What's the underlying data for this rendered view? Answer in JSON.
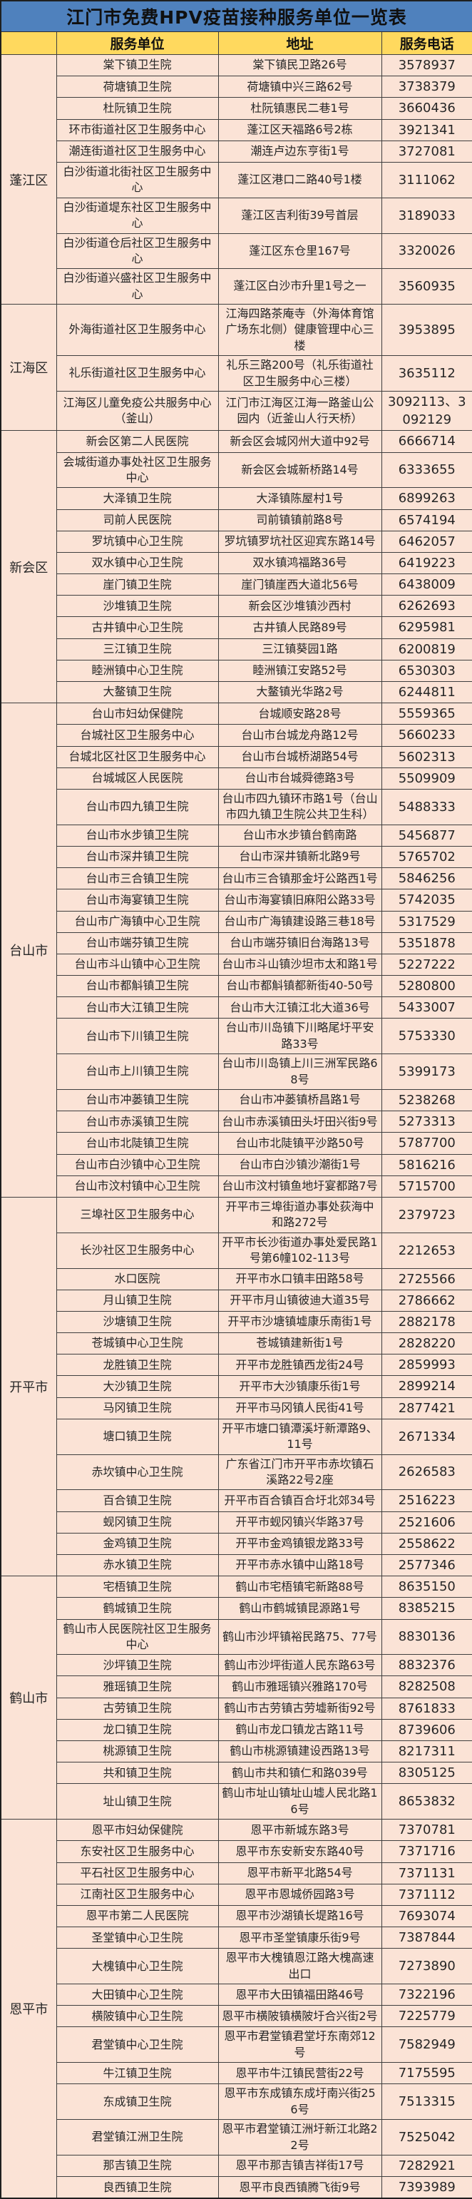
{
  "title": "江门市免费HPV疫苗接种服务单位一览表",
  "table": {
    "columns": [
      "服务单位",
      "地址",
      "服务电话"
    ],
    "sections": [
      {
        "district": "蓬江区",
        "rows": [
          {
            "unit": "棠下镇卫生院",
            "address": "棠下镇民卫路26号",
            "phone": "3578937"
          },
          {
            "unit": "荷塘镇卫生院",
            "address": "荷塘镇中兴三路62号",
            "phone": "3738379"
          },
          {
            "unit": "杜阮镇卫生院",
            "address": "杜阮镇惠民二巷1号",
            "phone": "3660436"
          },
          {
            "unit": "环市街道社区卫生服务中心",
            "address": "蓬江区天福路6号2栋",
            "phone": "3921341"
          },
          {
            "unit": "潮连街道社区卫生服务中心",
            "address": "潮连卢边东亨街1号",
            "phone": "3727081"
          },
          {
            "unit": "白沙街道北街社区卫生服务中心",
            "address": "蓬江区港口二路40号1楼",
            "phone": "3111062"
          },
          {
            "unit": "白沙街道堤东社区卫生服务中心",
            "address": "蓬江区吉利街39号首层",
            "phone": "3189033"
          },
          {
            "unit": "白沙街道仓后社区卫生服务中心",
            "address": "蓬江区东仓里167号",
            "phone": "3320026"
          },
          {
            "unit": "白沙街道兴盛社区卫生服务中心",
            "address": "蓬江区白沙市升里1号之一",
            "phone": "3560935"
          }
        ]
      },
      {
        "district": "江海区",
        "rows": [
          {
            "unit": "外海街道社区卫生服务中心",
            "address": "江海四路茶庵寺（外海体育馆广场东北侧）健康管理中心三楼",
            "phone": "3953895"
          },
          {
            "unit": "礼乐街道社区卫生服务中心",
            "address": "礼乐三路200号（礼乐街道社区卫生服务中心三楼）",
            "phone": "3635112"
          },
          {
            "unit": "江海区儿童免疫公共服务中心（釜山）",
            "address": "江门市江海区江海一路釜山公园内（近釜山人行天桥）",
            "phone": "3092113、3092129"
          }
        ]
      },
      {
        "district": "新会区",
        "rows": [
          {
            "unit": "新会区第二人民医院",
            "address": "新会区会城冈州大道中92号",
            "phone": "6666714"
          },
          {
            "unit": "会城街道办事处社区卫生服务中心",
            "address": "新会区会城新桥路14号",
            "phone": "6333655"
          },
          {
            "unit": "大泽镇卫生院",
            "address": "大泽镇陈屋村1号",
            "phone": "6899263"
          },
          {
            "unit": "司前人民医院",
            "address": "司前镇镇前路8号",
            "phone": "6574194"
          },
          {
            "unit": "罗坑镇中心卫生院",
            "address": "罗坑镇罗坑社区迎宾东路14号",
            "phone": "6462057"
          },
          {
            "unit": "双水镇中心卫生院",
            "address": "双水镇鸿福路36号",
            "phone": "6419223"
          },
          {
            "unit": "崖门镇卫生院",
            "address": "崖门镇崖西大道北56号",
            "phone": "6438009"
          },
          {
            "unit": "沙堆镇卫生院",
            "address": "新会区沙堆镇沙西村",
            "phone": "6262693"
          },
          {
            "unit": "古井镇中心卫生院",
            "address": "古井镇人民路89号",
            "phone": "6295981"
          },
          {
            "unit": "三江镇卫生院",
            "address": "三江镇葵园1路",
            "phone": "6200819"
          },
          {
            "unit": "睦洲镇中心卫生院",
            "address": "睦洲镇江安路52号",
            "phone": "6530303"
          },
          {
            "unit": "大鳌镇卫生院",
            "address": "大鳌镇光华路2号",
            "phone": "6244811"
          }
        ]
      },
      {
        "district": "台山市",
        "rows": [
          {
            "unit": "台山市妇幼保健院",
            "address": "台城顺安路28号",
            "phone": "5559365"
          },
          {
            "unit": "台城社区卫生服务中心",
            "address": "台山市台城龙舟路12号",
            "phone": "5660233"
          },
          {
            "unit": "台城北区社区卫生服务中心",
            "address": "台山市台城桥湖路54号",
            "phone": "5602313"
          },
          {
            "unit": "台城城区人民医院",
            "address": "台山市台城舜德路3号",
            "phone": "5509909"
          },
          {
            "unit": "台山市四九镇卫生院",
            "address": "台山市四九镇环市路1号（台山市四九镇卫生院公共卫生科）",
            "phone": "5488333"
          },
          {
            "unit": "台山市水步镇卫生院",
            "address": "台山市水步镇台鹤南路",
            "phone": "5456877"
          },
          {
            "unit": "台山市深井镇卫生院",
            "address": "台山市深井镇新北路9号",
            "phone": "5765702"
          },
          {
            "unit": "台山市三合镇卫生院",
            "address": "台山市三合镇那金圩公路西1号",
            "phone": "5846256"
          },
          {
            "unit": "台山市海宴镇卫生院",
            "address": "台山市海宴镇旧麻阳公路33号",
            "phone": "5742035"
          },
          {
            "unit": "台山市广海镇中心卫生院",
            "address": "台山市广海镇建设路三巷18号",
            "phone": "5317529"
          },
          {
            "unit": "台山市端芬镇卫生院",
            "address": "台山市端芬镇旧台海路13号",
            "phone": "5351878"
          },
          {
            "unit": "台山市斗山镇中心卫生院",
            "address": "台山市斗山镇沙坦市太和路1号",
            "phone": "5227222"
          },
          {
            "unit": "台山市都斛镇卫生院",
            "address": "台山市都斛镇都新街40-50号",
            "phone": "5280800"
          },
          {
            "unit": "台山市大江镇卫生院",
            "address": "台山市大江镇江北大道36号",
            "phone": "5433007"
          },
          {
            "unit": "台山市下川镇卫生院",
            "address": "台山市川岛镇下川略尾圩平安路33号",
            "phone": "5753330"
          },
          {
            "unit": "台山市上川镇卫生院",
            "address": "台山市川岛镇上川三洲军民路68号",
            "phone": "5399173"
          },
          {
            "unit": "台山市冲蒌镇卫生院",
            "address": "台山市冲蒌镇桥昌路1号",
            "phone": "5238268"
          },
          {
            "unit": "台山市赤溪镇卫生院",
            "address": "台山市赤溪镇田头圩田兴街9号",
            "phone": "5273313"
          },
          {
            "unit": "台山市北陡镇卫生院",
            "address": "台山市北陡镇平沙路50号",
            "phone": "5787700"
          },
          {
            "unit": "台山市白沙镇中心卫生院",
            "address": "台山市白沙镇沙潮街1号",
            "phone": "5816216"
          },
          {
            "unit": "台山市汶村镇中心卫生院",
            "address": "台山市汶村镇鱼地圩宴都路7号",
            "phone": "5715700"
          }
        ]
      },
      {
        "district": "开平市",
        "rows": [
          {
            "unit": "三埠社区卫生服务中心",
            "address": "开平市三埠街道办事处荻海中和路272号",
            "phone": "2379723"
          },
          {
            "unit": "长沙社区卫生服务中心",
            "address": "开平市长沙街道办事处爱民路1号第6幢102-113号",
            "phone": "2212653"
          },
          {
            "unit": "水口医院",
            "address": "开平市水口镇丰田路58号",
            "phone": "2725566"
          },
          {
            "unit": "月山镇卫生院",
            "address": "开平市月山镇彼迪大道35号",
            "phone": "2786662"
          },
          {
            "unit": "沙塘镇卫生院",
            "address": "开平市沙塘镇墟康乐南街1号",
            "phone": "2882178"
          },
          {
            "unit": "苍城镇中心卫生院",
            "address": "苍城镇建新街1号",
            "phone": "2828220"
          },
          {
            "unit": "龙胜镇卫生院",
            "address": "开平市龙胜镇西龙街24号",
            "phone": "2859993"
          },
          {
            "unit": "大沙镇卫生院",
            "address": "开平市大沙镇康乐街1号",
            "phone": "2899214"
          },
          {
            "unit": "马冈镇卫生院",
            "address": "开平市马冈镇人民街41号",
            "phone": "2877421"
          },
          {
            "unit": "塘口镇卫生院",
            "address": "开平市塘口镇潭溪圩新潭路9、11号",
            "phone": "2671334"
          },
          {
            "unit": "赤坎镇中心卫生院",
            "address": "广东省江门市开平市赤坎镇石溪路22号2座",
            "phone": "2626583"
          },
          {
            "unit": "百合镇卫生院",
            "address": "开平市百合镇百合圩北郊34号",
            "phone": "2516223"
          },
          {
            "unit": "蚬冈镇卫生院",
            "address": "开平市蚬冈镇兴华路37号",
            "phone": "2521606"
          },
          {
            "unit": "金鸡镇卫生院",
            "address": "开平市金鸡镇银龙路33号",
            "phone": "2558622"
          },
          {
            "unit": "赤水镇卫生院",
            "address": "开平市赤水镇中山路18号",
            "phone": "2577346"
          }
        ]
      },
      {
        "district": "鹤山市",
        "rows": [
          {
            "unit": "宅梧镇卫生院",
            "address": "鹤山市宅梧镇宅新路88号",
            "phone": "8635150"
          },
          {
            "unit": "鹤城镇卫生院",
            "address": "鹤山市鹤城镇昆源路1号",
            "phone": "8385215"
          },
          {
            "unit": "鹤山市人民医院社区卫生服务中心",
            "address": "鹤山市沙坪镇裕民路75、77号",
            "phone": "8830136"
          },
          {
            "unit": "沙坪镇卫生院",
            "address": "鹤山市沙坪街道人民东路63号",
            "phone": "8832376"
          },
          {
            "unit": "雅瑶镇卫生院",
            "address": "鹤山市雅瑶镇兴雅路170号",
            "phone": "8282508"
          },
          {
            "unit": "古劳镇卫生院",
            "address": "鹤山市古劳镇古劳墟新街92号",
            "phone": "8761833"
          },
          {
            "unit": "龙口镇卫生院",
            "address": "鹤山市龙口镇龙古路11号",
            "phone": "8739606"
          },
          {
            "unit": "桃源镇卫生院",
            "address": "鹤山市桃源镇建设西路13号",
            "phone": "8217311"
          },
          {
            "unit": "共和镇卫生院",
            "address": "鹤山市共和镇仁和路039号",
            "phone": "8305125"
          },
          {
            "unit": "址山镇卫生院",
            "address": "鹤山市址山镇址山墟人民北路16号",
            "phone": "8653832"
          }
        ]
      },
      {
        "district": "恩平市",
        "rows": [
          {
            "unit": "恩平市妇幼保健院",
            "address": "恩平市新城东路3号",
            "phone": "7370781"
          },
          {
            "unit": "东安社区卫生服务中心",
            "address": "恩平市东安新安东路40号",
            "phone": "7371716"
          },
          {
            "unit": "平石社区卫生服务中心",
            "address": "恩平市新平北路54号",
            "phone": "7371131"
          },
          {
            "unit": "江南社区卫生服务中心",
            "address": "恩平市恩城侨园路3号",
            "phone": "7371112"
          },
          {
            "unit": "恩平市第二人民医院",
            "address": "恩平市沙湖镇长堤路16号",
            "phone": "7693074"
          },
          {
            "unit": "圣堂镇中心卫生院",
            "address": "恩平市圣堂镇康乐街9号",
            "phone": "7387844"
          },
          {
            "unit": "大槐镇中心卫生院",
            "address": "恩平市大槐镇恩江路大槐高速出口",
            "phone": "7273890"
          },
          {
            "unit": "大田镇中心卫生院",
            "address": "恩平市大田镇福田路46号",
            "phone": "7322196"
          },
          {
            "unit": "横陂镇中心卫生院",
            "address": "恩平市横陂镇横陂圩合兴街2号",
            "phone": "7225779"
          },
          {
            "unit": "君堂镇中心卫生院",
            "address": "恩平市君堂镇君堂圩东南郊12号",
            "phone": "7582949"
          },
          {
            "unit": "牛江镇卫生院",
            "address": "恩平市牛江镇民营街22号",
            "phone": "7175595"
          },
          {
            "unit": "东成镇卫生院",
            "address": "恩平市东成镇东成圩南兴街256号",
            "phone": "7513315"
          },
          {
            "unit": "君堂镇江洲卫生院",
            "address": "恩平市君堂镇江洲圩新江北路22号",
            "phone": "7525042"
          },
          {
            "unit": "那吉镇卫生院",
            "address": "恩平市那吉镇吉祥街17号",
            "phone": "7282921"
          },
          {
            "unit": "良西镇卫生院",
            "address": "恩平市良西镇腾飞街9号",
            "phone": "7393989"
          }
        ]
      }
    ],
    "colors": {
      "title_bg": "#4f81bd",
      "header_bg": "#ffd95e",
      "row_bg": "#fbe3d6",
      "grid_line": "#3f3f3f",
      "text": "#262626"
    }
  }
}
